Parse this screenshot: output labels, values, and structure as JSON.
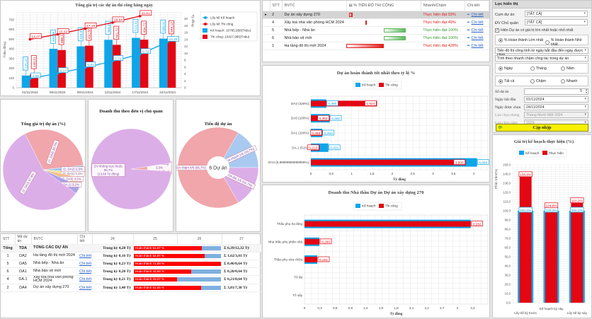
{
  "daily_chart": {
    "title": "Tổng giá trị các dự án thi công hằng ngày",
    "y_left_label": "Triệu đồng",
    "y_right_label": "Tỷ đồng",
    "legend": [
      "Lũy kế Kế hoạch",
      "Lũy kế Thi công",
      "Kế hoạch: 10765,958(Triệu)",
      "Thi công: 10427,985(Triệu)"
    ]
  },
  "progress_table": {
    "headers": [
      "STT",
      "BVTC",
      "% TIẾN ĐỘ THI CÔNG",
      "Nhanh/Chậm",
      "Chi tiết"
    ],
    "rows": [
      {
        "stt": "2",
        "name": "Dự án xây dựng 270",
        "status": "Thực hiện đạt 93%",
        "link": "Chi tiết",
        "pct": 93,
        "tone": "red"
      },
      {
        "stt": "4",
        "name": "Xây toà nhà văn phòng HCM 2024",
        "status": "Thực hiện đạt 49%",
        "link": "Chi tiết",
        "pct": 49,
        "tone": "red"
      },
      {
        "stt": "5",
        "name": "Nhà bếp - Nhà ăn",
        "status": "Thực hiện đạt 100%",
        "link": "Chi tiết",
        "pct": 100,
        "tone": "green"
      },
      {
        "stt": "6",
        "name": "Nhà bảo vệ mới",
        "status": "Thực hiện đạt 100%",
        "link": "Chi tiết",
        "pct": 100,
        "tone": "green"
      },
      {
        "stt": "1",
        "name": "Hạ tầng đô thị mới 2024",
        "status": "Thực hiện đạt 428%",
        "link": "Chi tiết",
        "pct": 428,
        "tone": "red"
      }
    ]
  },
  "filter": {
    "title": "Lọc hiển thị",
    "cum_du_an_label": "Cụm dự án",
    "cum_du_an_value": "[TẤT CẢ]",
    "dv_chu_quan_label": "ĐV Chủ quản",
    "dv_chu_quan_value": "[TẤT CẢ]",
    "checkbox_label": "Hiện Dự án có giá trị lớn nhất hoặc nhỏ nhất",
    "radio_max": "% Hoàn thành Lớn nhất",
    "radio_min": "% Hoàn thành Nhỏ nhất",
    "mode_select": "Tiến độ thi công tính từ ngày bắt đầu đến ngày được chọn",
    "calc_select": "Tính theo nhanh chậm công tác trong dự án",
    "radio_day": "Ngày",
    "radio_month": "Tháng",
    "radio_year": "Năm",
    "radio_all": "Tất cả",
    "radio_slow": "Chậm",
    "radio_fast": "Nhanh",
    "so_du_an_label": "Số dự án",
    "so_du_an_value": "5",
    "ngay_bat_dau_label": "Ngày bắt đầu",
    "ngay_bat_dau_value": "01/11/2024",
    "ngay_duoc_chon_label": "Ngày được chọn",
    "ngay_duoc_chon_value": "24/11/2024",
    "lua_chon_thang_label": "Lựa chọn tháng",
    "lua_chon_thang_value": "Tháng Mười Một 2024",
    "lua_chon_nam_label": "Lựa chọn năm",
    "lua_chon_nam_value": "2024",
    "update_button": "Cập nhập"
  },
  "pie1": {
    "title": "Tổng giá trị dự án (%)"
  },
  "pie2": {
    "title": "Doanh thu theo đơn vị chủ quản"
  },
  "pie3": {
    "title": "Tiến độ dự án",
    "center": "6 Dự án"
  },
  "summary_table": {
    "headers": [
      "STT",
      "Mã dự án",
      "BVTC",
      "Chi tiết",
      "24",
      "25",
      "26",
      "27"
    ],
    "rows": [
      {
        "stt": "Tổng",
        "code": "TDA",
        "name": "TỔNG CÁC DỰ ÁN",
        "link": "",
        "period": "Trong kỳ 4,28 Tỷ",
        "bar": "Hoàn thành 51,87 %",
        "pct": 51.87,
        "total": "Σ 6,39/12,32 Tỷ"
      },
      {
        "stt": "1",
        "code": "DA2",
        "name": "Hạ tầng đô thị mới 2024",
        "link": "Chi tiết",
        "period": "Trong kỳ 0,16 Tỷ",
        "bar": "Hoàn thành 53,97 %",
        "pct": 53.97,
        "total": "Σ 1,62/3,01 Tỷ"
      },
      {
        "stt": "5",
        "code": "DA5",
        "name": "Nhà bếp - Nhà ăn",
        "link": "Chi tiết",
        "period": "Trong kỳ 0,23 Tỷ",
        "bar": "Hoàn thành 71,89 %",
        "pct": 71.89,
        "total": "Σ 0,46/0,64 Tỷ"
      },
      {
        "stt": "6",
        "code": "DA1",
        "name": "Nhà bảo vệ mới",
        "link": "Chi tiết",
        "period": "Trong kỳ 0,28 Tỷ",
        "bar": "Hoàn thành 43,94 %",
        "pct": 43.94,
        "total": "Σ 0,28/0,64 Tỷ"
      },
      {
        "stt": "4",
        "code": "DA.1",
        "name": "Xây toà nhà văn phòng HCM 2024",
        "link": "Chi tiết",
        "period": "Trong kỳ 0,21 Tỷ",
        "bar": "Hoàn thành 33,07 %",
        "pct": 33.07,
        "total": "Σ 0,21/0,64 Tỷ"
      },
      {
        "stt": "2",
        "code": "DA4",
        "name": "Dự án xây dựng 270",
        "link": "Chi tiết",
        "period": "Trong kỳ 3,40 Tỷ",
        "bar": "Hoàn thành 51,55 %",
        "pct": 51.55,
        "total": "Σ 3,81/7,38 Tỷ"
      }
    ]
  },
  "chart_data": [
    {
      "type": "bar",
      "title": "Tổng giá trị các dự án thi công hằng ngày",
      "xlabel": "",
      "ylabel": "Triệu đồng",
      "y2label": "Tỷ đồng",
      "categories": [
        "01/11/2024",
        "05/11/2024",
        "09/11/2024",
        "13/11/2024",
        "17/11/2024",
        "24/11/2024"
      ],
      "ylim": [
        0,
        780
      ],
      "y2lim": [
        0,
        22
      ],
      "yticks": [
        0,
        100,
        200,
        300,
        400,
        500,
        600,
        700
      ],
      "y2ticks": [
        0,
        2,
        4,
        6,
        8,
        10,
        12,
        14,
        16,
        18,
        20
      ],
      "series": [
        {
          "name": "Kế hoạch",
          "kind": "bar",
          "color": "#0ea5e9",
          "values": [
            125.41,
            400.86,
            426.37,
            493.49,
            513.41,
            506.02
          ],
          "labels": [
            "125,41",
            "400,86",
            "426,37",
            "493,49",
            "513,41",
            "506,02"
          ]
        },
        {
          "name": "Thi công",
          "kind": "bar",
          "color": "#e30613",
          "values": [
            140.21,
            388.12,
            432.55,
            441.72,
            494.71,
            499.12
          ],
          "labels": [
            "140,21",
            "388,12",
            "432,55",
            "441,72",
            "494,71",
            "499,12"
          ]
        },
        {
          "name": "Lũy kế Thi công",
          "kind": "line",
          "axis": "right",
          "color": "#e30613",
          "values": [
            14.07,
            15.52,
            17.19,
            18.94,
            20.81,
            null
          ],
          "labels": [
            "14,07",
            "15,52",
            "17,19",
            "18,94",
            "20,81",
            ""
          ]
        },
        {
          "name": "Lũy kế Kế hoạch",
          "kind": "line",
          "axis": "right",
          "color": "#0ea5e9",
          "values": [
            2.66,
            4.17,
            5.83,
            7.71,
            9.72,
            13.29
          ],
          "labels": [
            "2,66",
            "4,17",
            "5,83",
            "7,71",
            "9,72",
            "13,29"
          ]
        }
      ],
      "legend": "right"
    },
    {
      "type": "bar",
      "orientation": "horizontal",
      "title": "Dự án hoàn thành tốt nhất theo tỷ lệ %",
      "xlabel": "Tỷ đồng",
      "categories": [
        "DA2 (328%)",
        "DA5 (100%)",
        "DA1 (100%)",
        "DA.1 (51%)",
        "DA4 (6,99999999999999%)"
      ],
      "xlim": [
        0,
        4.35
      ],
      "xticks": [
        "0",
        "0,5",
        "1",
        "1,5",
        "2",
        "2,5",
        "3",
        "3,5",
        "4"
      ],
      "series": [
        {
          "name": "Kế hoạch",
          "color": "#0ea5e9",
          "values": [
            0.38,
            0.463,
            0.283,
            0.431,
            4.084
          ],
          "labels": [
            "0,380",
            "0,463",
            "0,283",
            "0,431",
            "4,084"
          ]
        },
        {
          "name": "Thi công",
          "color": "#e30613",
          "values": [
            1.624,
            0.463,
            0.283,
            0.213,
            3.806
          ],
          "labels": [
            "1,624",
            "0,463",
            "0,283",
            "0,213",
            "3,806"
          ]
        }
      ],
      "legend": "top"
    },
    {
      "type": "bar",
      "orientation": "horizontal",
      "title": "Doanh thu Nhà thầu Dự án Dự án xây dựng 270",
      "xlabel": "Tỷ đồng",
      "categories": [
        "Thầu phụ hạ tầng",
        "Nhà thầu phụ phần nhà",
        "Thầu phụ sửa chữa",
        "Tổ đá",
        "Tổ xây"
      ],
      "xlim": [
        0,
        3.6
      ],
      "xticks": [
        "0",
        "0,3",
        "0,6",
        "0,9",
        "1,2",
        "1,5",
        "1,8",
        "2,1",
        "2,4",
        "2,7",
        "3",
        "3,3"
      ],
      "series": [
        {
          "name": "Kế hoạch",
          "color": "#0ea5e9",
          "values": [
            3.262,
            0.293,
            0.251,
            0,
            0
          ]
        },
        {
          "name": "Thi công",
          "color": "#e30613",
          "values": [
            3.262,
            0.293,
            0.251,
            0,
            0
          ],
          "labels": [
            "3,262",
            "0,293",
            "0,251",
            "",
            ""
          ]
        }
      ],
      "legend": "top"
    },
    {
      "type": "pie",
      "title": "Tổng giá trị dự án (%)",
      "slices": [
        {
          "label": "(7. DA4) 30,7%",
          "value": 30.7,
          "color": "#f0a6ab"
        },
        {
          "label": "(1. DA2) 2,9%",
          "value": 2.9,
          "color": "#9ec6ee"
        },
        {
          "label": "(6. DA1) 2,1%",
          "value": 2.1,
          "color": "#f2e58a"
        },
        {
          "label": "(5. DA5) 3,5%",
          "value": 3.5,
          "color": "#f5c08e"
        },
        {
          "label": "(4. DA.1) 3,2%",
          "value": 3.2,
          "color": "#aca2e8"
        },
        {
          "label": "(2. DA2) 57,6%",
          "value": 57.6,
          "color": "#dcaee8"
        }
      ]
    },
    {
      "type": "pie",
      "title": "Doanh thu theo đơn vị chủ quản",
      "slices": [
        {
          "label": "BĐH thi công 3,3% (0,46 Tỷ đồng)",
          "value": 3.3,
          "color": "#f0a6ab"
        },
        {
          "label": "DV không trực thuộc 96,7% (13,69 Tỷ đồng)",
          "value": 96.7,
          "color": "#dcaee8"
        }
      ]
    },
    {
      "type": "pie",
      "title": "Tiến độ dự án",
      "center_label": "6 Dự án",
      "slices": [
        {
          "label": "DA nhanh 1/6 (16,7%)",
          "value": 16.7,
          "color": "#a9c9f0"
        },
        {
          "label": "DA đạt 1/6 (16,7%)",
          "value": 16.7,
          "color": "#dcaee8"
        },
        {
          "label": "DA chậm 4/6 (66,7%)",
          "value": 66.7,
          "color": "#f0a6ab"
        }
      ]
    },
    {
      "type": "bar",
      "title": "Giá trị kế hoạch-thực hiện (%)",
      "ylabel": "Phần trăm(%)",
      "categories": [
        "Lũy kế kỳ trước",
        "Kế hoạch kỳ này",
        "Lũy kế kỳ này"
      ],
      "ylim": [
        0,
        150
      ],
      "yticks": [
        "0,0",
        "10,0",
        "20,0",
        "30,0",
        "40,0",
        "50,0",
        "60,0",
        "70,0",
        "80,0",
        "90,0",
        "100,0",
        "110,0",
        "120,0",
        "130,0",
        "140,0",
        "150,0"
      ],
      "series": [
        {
          "name": "Kế hoạch",
          "color": "#0ea5e9",
          "values": [
            100.0,
            100.0,
            100.0
          ],
          "labels": [
            "100,0%",
            "100,0%",
            "100,0%"
          ]
        },
        {
          "name": "Thực hiện",
          "color": "#e30613",
          "values": [
            138.6,
            104.8,
            110.2
          ],
          "labels": [
            "138,6%",
            "104,8%",
            "110,2%"
          ]
        }
      ],
      "legend": "top"
    }
  ]
}
